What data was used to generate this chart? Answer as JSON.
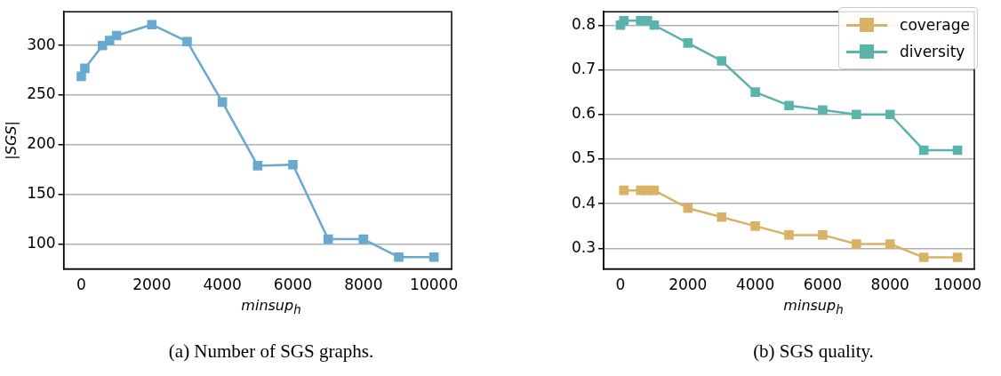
{
  "chart_data": [
    {
      "type": "line",
      "xlabel": "minsup$_{h}$",
      "ylabel": "|SGS|",
      "x": [
        0,
        100,
        600,
        800,
        1000,
        2000,
        3000,
        4000,
        5000,
        6000,
        7000,
        8000,
        9000,
        10000
      ],
      "series": [
        {
          "color": "#67a9cf",
          "values": [
            269,
            277,
            300,
            305,
            310,
            321,
            304,
            243,
            179,
            180,
            105,
            105,
            87,
            87
          ]
        }
      ],
      "xlim": [
        -500,
        10500
      ],
      "xticks": [
        0,
        2000,
        4000,
        6000,
        8000,
        10000
      ],
      "ylim": [
        75,
        334
      ],
      "yticks": [
        100,
        150,
        200,
        250,
        300
      ],
      "grid": "y",
      "marker": "square",
      "line_style": "solid",
      "legend": false,
      "annotations": [
        "(a) Number of SGS graphs."
      ]
    },
    {
      "type": "line",
      "xlabel": "minsup$_{h}$",
      "x": [
        0,
        100,
        600,
        800,
        1000,
        2000,
        3000,
        4000,
        5000,
        6000,
        7000,
        8000,
        9000,
        10000
      ],
      "series": [
        {
          "name": "coverage",
          "color": "#d8b365",
          "values": [
            null,
            0.43,
            0.43,
            0.43,
            0.43,
            0.39,
            0.37,
            0.35,
            0.33,
            0.33,
            0.31,
            0.31,
            0.28,
            0.28
          ]
        },
        {
          "name": "diversity",
          "color": "#5ab4ac",
          "values": [
            0.8,
            0.81,
            0.81,
            0.81,
            0.8,
            0.76,
            0.72,
            0.65,
            0.62,
            0.61,
            0.6,
            0.6,
            0.52,
            0.52
          ]
        }
      ],
      "xlim": [
        -500,
        10500
      ],
      "xticks": [
        0,
        2000,
        4000,
        6000,
        8000,
        10000
      ],
      "ylim": [
        0.254,
        0.83
      ],
      "yticks": [
        0.3,
        0.4,
        0.5,
        0.6,
        0.7,
        0.8
      ],
      "grid": "y",
      "marker": "square",
      "line_style": "solid",
      "legend": "top right",
      "annotations": [
        "(b)  SGS quality."
      ]
    }
  ]
}
